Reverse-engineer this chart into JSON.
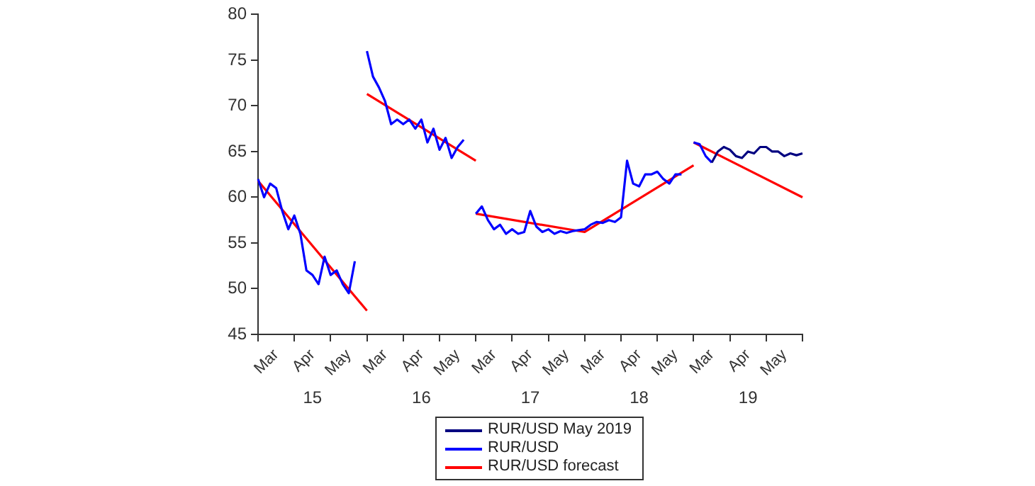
{
  "chart_data": {
    "type": "line",
    "marker": "none",
    "line_style": "solid",
    "legend": "bottom",
    "grid": false,
    "categories": [
      null,
      null,
      null,
      "Mar",
      null,
      null,
      null,
      null,
      null,
      "Apr",
      null,
      null,
      null,
      null,
      null,
      "May",
      null,
      null,
      null,
      null,
      null,
      "Mar",
      null,
      null,
      null,
      null,
      null,
      "Apr",
      null,
      null,
      null,
      null,
      null,
      "May",
      null,
      null,
      null,
      null,
      null,
      "Mar",
      null,
      null,
      null,
      null,
      null,
      "Apr",
      null,
      null,
      null,
      null,
      null,
      "May",
      null,
      null,
      null,
      null,
      null,
      "Mar",
      null,
      null,
      null,
      null,
      null,
      "Apr",
      null,
      null,
      null,
      null,
      null,
      "May",
      null,
      null,
      null,
      null,
      null,
      "Mar",
      null,
      null,
      null,
      null,
      null,
      "Apr",
      null,
      null,
      null,
      null,
      null,
      "May",
      null,
      null,
      null
    ],
    "ylim": [
      45,
      80
    ],
    "yticks": [
      45,
      50,
      55,
      60,
      65,
      70,
      75,
      80
    ],
    "annotations": [
      "15",
      "16",
      "17",
      "18",
      "19"
    ],
    "series": [
      {
        "name": "RUR/USD May 2019",
        "color": "#000080",
        "values": [
          null,
          null,
          null,
          null,
          null,
          null,
          null,
          null,
          null,
          null,
          null,
          null,
          null,
          null,
          null,
          null,
          null,
          null,
          null,
          null,
          null,
          null,
          null,
          null,
          null,
          null,
          null,
          null,
          null,
          null,
          null,
          null,
          null,
          null,
          null,
          null,
          null,
          null,
          null,
          null,
          null,
          null,
          null,
          null,
          null,
          null,
          null,
          null,
          null,
          null,
          null,
          null,
          null,
          null,
          null,
          null,
          null,
          null,
          null,
          null,
          null,
          null,
          null,
          null,
          null,
          null,
          null,
          null,
          null,
          null,
          null,
          null,
          null,
          null,
          null,
          63.8,
          65,
          65.5,
          65.2,
          64.5,
          64.3,
          65,
          64.8,
          65.5,
          65.5,
          65,
          65,
          64.5,
          64.8,
          64.6,
          64.8
        ]
      },
      {
        "name": "RUR/USD",
        "color": "#0000ff",
        "values": [
          62,
          60,
          61.5,
          61,
          58.5,
          56.5,
          58,
          56,
          52,
          51.5,
          50.5,
          53.5,
          51.5,
          52,
          50.5,
          49.5,
          53,
          null,
          76,
          73.2,
          72,
          70.5,
          68,
          68.5,
          68,
          68.5,
          67.5,
          68.5,
          66,
          67.5,
          65.2,
          66.5,
          64.3,
          65.5,
          66.3,
          null,
          58.2,
          59,
          57.5,
          56.5,
          57,
          56,
          56.5,
          56,
          56.2,
          58.5,
          56.8,
          56.2,
          56.5,
          56,
          56.3,
          56.1,
          56.3,
          56.4,
          56.5,
          57,
          57.3,
          57.2,
          57.5,
          57.3,
          57.8,
          64,
          61.5,
          61.2,
          62.5,
          62.5,
          62.8,
          62,
          61.5,
          62.5,
          62.5,
          null,
          66,
          65.8,
          64.5,
          63.8,
          null,
          null,
          null,
          null,
          null,
          null,
          null,
          null,
          null,
          null,
          null,
          null,
          null,
          null,
          null
        ]
      },
      {
        "name": "RUR/USD forecast",
        "color": "#ff0000",
        "values": [
          61.8,
          null,
          null,
          null,
          null,
          null,
          null,
          null,
          null,
          null,
          null,
          null,
          null,
          null,
          null,
          null,
          null,
          null,
          47.6,
          null,
          null,
          null,
          null,
          null,
          null,
          null,
          null,
          null,
          null,
          null,
          null,
          null,
          null,
          null,
          null,
          null,
          null,
          null,
          null,
          null,
          null,
          null,
          null,
          null,
          null,
          null,
          null,
          null,
          null,
          null,
          null,
          null,
          null,
          null,
          null,
          null,
          null,
          null,
          null,
          null,
          null,
          null,
          null,
          null,
          null,
          null,
          null,
          null,
          null,
          null,
          null,
          null,
          null,
          null,
          null,
          null,
          null,
          null,
          null,
          null,
          null,
          null,
          null,
          null,
          null,
          null,
          null,
          null,
          null,
          null,
          null
        ]
      },
      {
        "color": "#ff0000",
        "values": [
          null,
          null,
          null,
          null,
          null,
          null,
          null,
          null,
          null,
          null,
          null,
          null,
          null,
          null,
          null,
          null,
          null,
          null,
          71.3,
          null,
          null,
          null,
          null,
          null,
          null,
          null,
          null,
          null,
          null,
          null,
          null,
          null,
          null,
          null,
          null,
          null,
          64,
          null,
          null,
          null,
          null,
          null,
          null,
          null,
          null,
          null,
          null,
          null,
          null,
          null,
          null,
          null,
          null,
          null,
          null,
          null,
          null,
          null,
          null,
          null,
          null,
          null,
          null,
          null,
          null,
          null,
          null,
          null,
          null,
          null,
          null,
          null,
          null,
          null,
          null,
          null,
          null,
          null,
          null,
          null,
          null,
          null,
          null,
          null,
          null,
          null,
          null,
          null,
          null,
          null,
          null
        ]
      },
      {
        "color": "#ff0000",
        "values": [
          null,
          null,
          null,
          null,
          null,
          null,
          null,
          null,
          null,
          null,
          null,
          null,
          null,
          null,
          null,
          null,
          null,
          null,
          null,
          null,
          null,
          null,
          null,
          null,
          null,
          null,
          null,
          null,
          null,
          null,
          null,
          null,
          null,
          null,
          null,
          null,
          58.2,
          null,
          null,
          null,
          null,
          null,
          null,
          null,
          null,
          null,
          null,
          null,
          null,
          null,
          null,
          null,
          null,
          null,
          56.2,
          null,
          null,
          null,
          null,
          null,
          null,
          null,
          null,
          null,
          null,
          null,
          null,
          null,
          null,
          null,
          null,
          null,
          63.5,
          null,
          null,
          null,
          null,
          null,
          null,
          null,
          null,
          null,
          null,
          null,
          null,
          null,
          null,
          null,
          null,
          null,
          null
        ]
      },
      {
        "color": "#ff0000",
        "values": [
          null,
          null,
          null,
          null,
          null,
          null,
          null,
          null,
          null,
          null,
          null,
          null,
          null,
          null,
          null,
          null,
          null,
          null,
          null,
          null,
          null,
          null,
          null,
          null,
          null,
          null,
          null,
          null,
          null,
          null,
          null,
          null,
          null,
          null,
          null,
          null,
          null,
          null,
          null,
          null,
          null,
          null,
          null,
          null,
          null,
          null,
          null,
          null,
          null,
          null,
          null,
          null,
          null,
          null,
          null,
          null,
          null,
          null,
          null,
          null,
          null,
          null,
          null,
          null,
          null,
          null,
          null,
          null,
          null,
          null,
          null,
          null,
          66,
          null,
          null,
          null,
          null,
          null,
          null,
          null,
          null,
          null,
          null,
          null,
          null,
          null,
          null,
          null,
          null,
          null,
          60
        ]
      }
    ]
  }
}
